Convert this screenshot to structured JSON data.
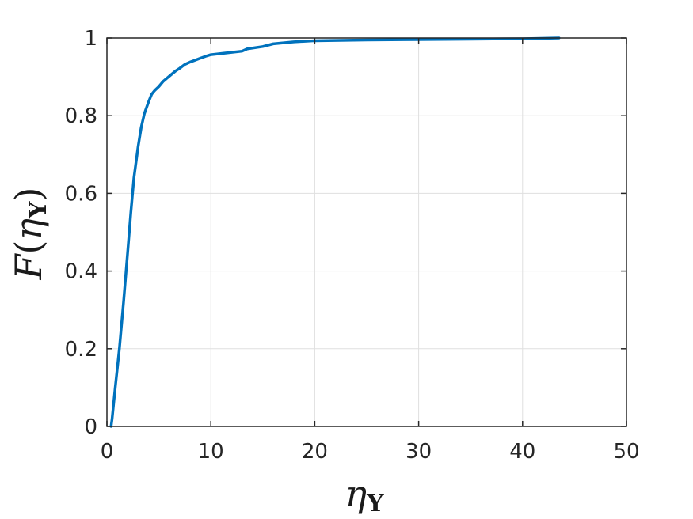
{
  "chart_data": {
    "type": "line",
    "title": "",
    "xlabel": {
      "base": "η",
      "subscript": "Y"
    },
    "ylabel": {
      "func": "F",
      "open": "(",
      "base": "η",
      "subscript": "Y",
      "close": ")"
    },
    "xlim": [
      0,
      50
    ],
    "ylim": [
      0,
      1
    ],
    "x_ticks": [
      0,
      10,
      20,
      30,
      40,
      50
    ],
    "x_tick_labels": [
      "0",
      "10",
      "20",
      "30",
      "40",
      "50"
    ],
    "y_ticks": [
      0,
      0.2,
      0.4,
      0.6,
      0.8,
      1
    ],
    "y_tick_labels": [
      "0",
      "0.2",
      "0.4",
      "0.6",
      "0.8",
      "1"
    ],
    "grid": true,
    "series": [
      {
        "color": "#0072BD",
        "x": [
          0.4,
          0.5,
          0.8,
          1.2,
          1.6,
          2.0,
          2.3,
          2.6,
          3.0,
          3.3,
          3.6,
          4.0,
          4.3,
          4.6,
          5.0,
          5.4,
          5.8,
          6.2,
          6.6,
          7.0,
          7.5,
          8.0,
          8.5,
          9.0,
          9.5,
          10.0,
          11.0,
          12.0,
          13.0,
          13.5,
          15.0,
          16.0,
          18.0,
          20.0,
          25.0,
          30.0,
          35.0,
          40.0,
          43.5
        ],
        "y": [
          0.0,
          0.02,
          0.1,
          0.2,
          0.32,
          0.45,
          0.55,
          0.64,
          0.72,
          0.77,
          0.805,
          0.835,
          0.855,
          0.865,
          0.875,
          0.888,
          0.897,
          0.906,
          0.915,
          0.922,
          0.932,
          0.938,
          0.943,
          0.948,
          0.953,
          0.957,
          0.96,
          0.963,
          0.966,
          0.972,
          0.978,
          0.985,
          0.99,
          0.993,
          0.995,
          0.996,
          0.997,
          0.998,
          1.0
        ]
      }
    ]
  }
}
